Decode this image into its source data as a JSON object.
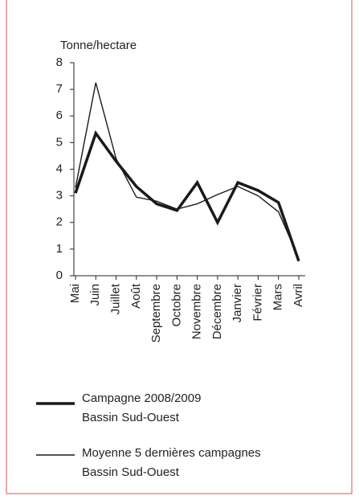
{
  "chart_data": {
    "type": "line",
    "ylabel": "Tonne/hectare",
    "categories": [
      "Mai",
      "Juin",
      "Juillet",
      "Août",
      "Septembre",
      "Octobre",
      "Novembre",
      "Décembre",
      "Janvier",
      "Février",
      "Mars",
      "Avril"
    ],
    "series": [
      {
        "name": "Campagne 2008/2009\nBassin Sud-Ouest",
        "color": "#1a1a1a",
        "values": [
          3.1,
          5.35,
          4.3,
          3.35,
          2.7,
          2.45,
          3.5,
          2.0,
          3.5,
          3.2,
          2.75,
          0.55
        ]
      },
      {
        "name": "Moyenne 5 dernières campagnes\nBassin Sud-Ouest",
        "color": "#1a1a1a",
        "values": [
          3.3,
          7.25,
          4.4,
          2.95,
          2.8,
          2.5,
          2.7,
          3.05,
          3.35,
          3.0,
          2.4,
          0.65
        ]
      }
    ],
    "ylim": [
      0,
      8
    ],
    "yticks": [
      0,
      1,
      2,
      3,
      4,
      5,
      6,
      7,
      8
    ]
  }
}
